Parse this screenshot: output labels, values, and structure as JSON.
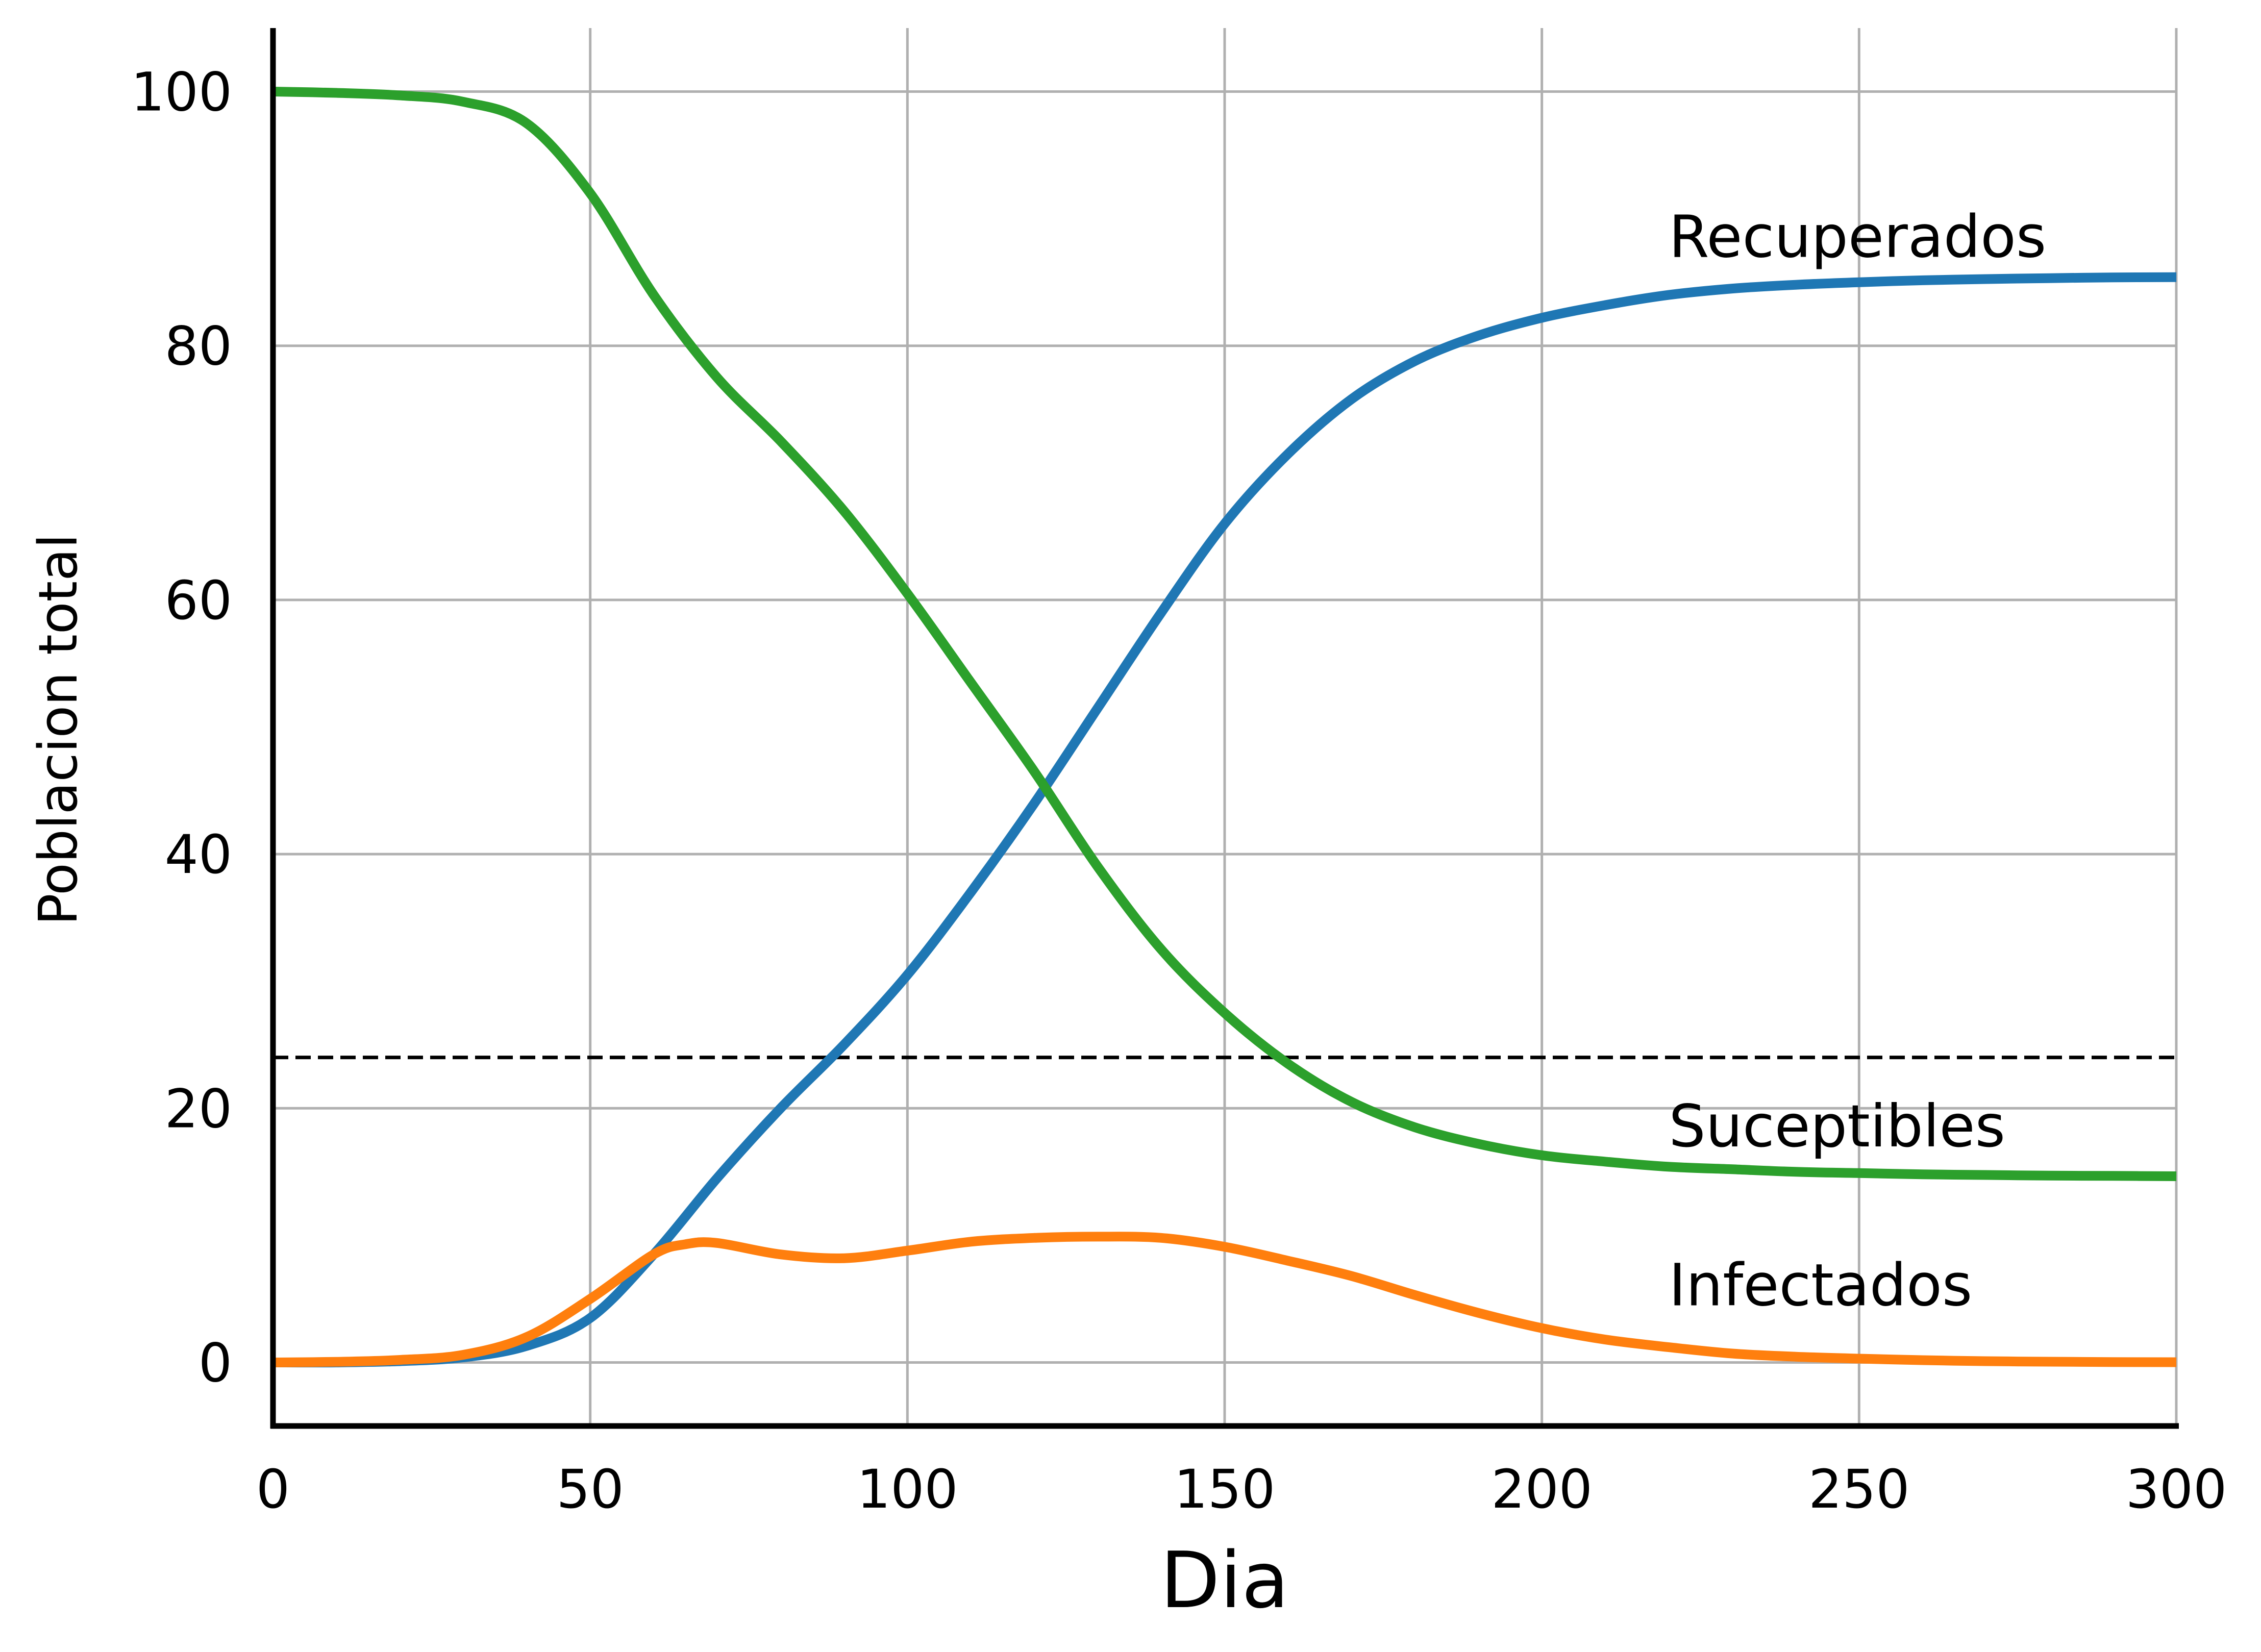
{
  "chart_data": {
    "type": "line",
    "xlabel": "Dia",
    "ylabel": "Poblacion total",
    "xlim": [
      0,
      300
    ],
    "ylim": [
      -5,
      105
    ],
    "xticks": [
      0,
      50,
      100,
      150,
      200,
      250,
      300
    ],
    "yticks": [
      0,
      20,
      40,
      60,
      80,
      100
    ],
    "grid": true,
    "legend": "none",
    "threshold": {
      "y": 24,
      "style": "dashed",
      "color": "#000000"
    },
    "series": [
      {
        "name": "Recuperados",
        "color": "#1f77b4",
        "label_at": [
          220,
          87
        ],
        "x": [
          0,
          10,
          20,
          30,
          40,
          50,
          60,
          70,
          80,
          90,
          100,
          110,
          120,
          130,
          140,
          150,
          160,
          170,
          180,
          190,
          200,
          210,
          220,
          230,
          240,
          250,
          260,
          270,
          280,
          290,
          300
        ],
        "y": [
          0,
          0,
          0.1,
          0.4,
          1.3,
          3.5,
          8.5,
          14.5,
          20,
          25,
          30.5,
          37,
          44,
          51.5,
          59,
          66,
          71.5,
          75.8,
          78.8,
          80.8,
          82.2,
          83.2,
          84,
          84.5,
          84.8,
          85,
          85.15,
          85.25,
          85.32,
          85.38,
          85.4
        ]
      },
      {
        "name": "Suceptibles",
        "color": "#2ca02c",
        "label_at": [
          220,
          17
        ],
        "x": [
          0,
          10,
          20,
          30,
          40,
          50,
          60,
          70,
          80,
          90,
          100,
          110,
          120,
          130,
          140,
          150,
          160,
          170,
          180,
          190,
          200,
          210,
          220,
          230,
          240,
          250,
          260,
          270,
          280,
          290,
          300
        ],
        "y": [
          100,
          99.9,
          99.7,
          99.2,
          97.5,
          92,
          84,
          77.5,
          72.5,
          67,
          60.5,
          53.5,
          46.5,
          39,
          32.5,
          27.5,
          23.5,
          20.5,
          18.5,
          17.2,
          16.3,
          15.8,
          15.4,
          15.2,
          15,
          14.9,
          14.8,
          14.75,
          14.7,
          14.68,
          14.65
        ]
      },
      {
        "name": "Infectados",
        "color": "#ff7f0e",
        "label_at": [
          220,
          4.5
        ],
        "x": [
          0,
          10,
          20,
          30,
          40,
          50,
          60,
          65,
          70,
          80,
          90,
          100,
          110,
          120,
          130,
          140,
          150,
          160,
          170,
          180,
          190,
          200,
          210,
          220,
          230,
          240,
          250,
          260,
          270,
          280,
          290,
          300
        ],
        "y": [
          0,
          0.05,
          0.2,
          0.6,
          2,
          5,
          8.5,
          9.3,
          9.4,
          8.5,
          8.2,
          8.8,
          9.5,
          9.8,
          9.9,
          9.8,
          9.1,
          8,
          6.8,
          5.3,
          3.9,
          2.7,
          1.8,
          1.2,
          0.7,
          0.45,
          0.3,
          0.18,
          0.1,
          0.06,
          0.03,
          0.02
        ]
      }
    ]
  }
}
